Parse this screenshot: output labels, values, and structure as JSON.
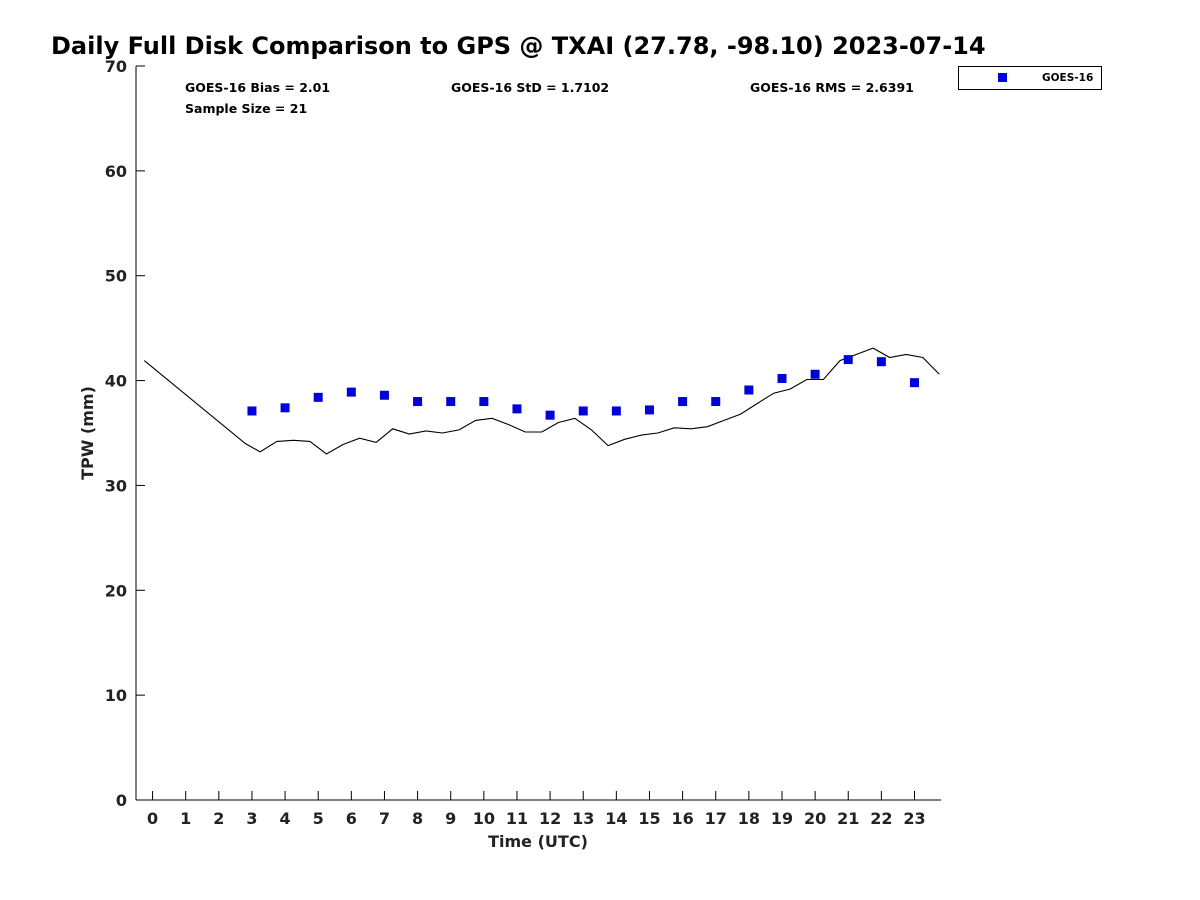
{
  "chart_data": {
    "type": "scatter",
    "title": "Daily Full Disk Comparison to GPS @ TXAI (27.78, -98.10) 2023-07-14",
    "xlabel": "Time (UTC)",
    "ylabel": "TPW (mm)",
    "xlim": [
      -0.5,
      23.8
    ],
    "ylim": [
      0,
      70
    ],
    "xticks": [
      "0",
      "1",
      "2",
      "3",
      "4",
      "5",
      "6",
      "7",
      "8",
      "9",
      "10",
      "11",
      "12",
      "13",
      "14",
      "15",
      "16",
      "17",
      "18",
      "19",
      "20",
      "21",
      "22",
      "23"
    ],
    "yticks": [
      "0",
      "10",
      "20",
      "30",
      "40",
      "50",
      "60",
      "70"
    ],
    "grid": false,
    "legend_position": "top-right, outside plot",
    "stats": {
      "bias": "GOES-16 Bias = 2.01",
      "std": "GOES-16 StD = 1.7102",
      "rms": "GOES-16 RMS = 2.6391",
      "sample": "Sample Size = 21"
    },
    "series": [
      {
        "name": "GOES-16",
        "kind": "markers",
        "color": "#0000dd",
        "x": [
          3,
          4,
          5,
          6,
          7,
          8,
          9,
          10,
          11,
          12,
          13,
          14,
          15,
          16,
          17,
          18,
          19,
          20,
          21,
          22,
          23
        ],
        "y": [
          37.1,
          37.4,
          38.4,
          38.9,
          38.6,
          38.0,
          38.0,
          38.0,
          37.3,
          36.7,
          37.1,
          37.1,
          37.2,
          38.0,
          38.0,
          39.1,
          40.2,
          40.6,
          42.0,
          41.8,
          39.8
        ]
      },
      {
        "kind": "line",
        "color": "#000000",
        "x": [
          -0.25,
          2.8,
          3.25,
          3.75,
          4.25,
          4.75,
          5.25,
          5.75,
          6.25,
          6.75,
          7.25,
          7.75,
          8.25,
          8.75,
          9.25,
          9.75,
          10.25,
          10.75,
          11.25,
          11.75,
          12.25,
          12.75,
          13.25,
          13.75,
          14.25,
          14.75,
          15.25,
          15.75,
          16.25,
          16.75,
          17.25,
          17.75,
          18.25,
          18.75,
          19.25,
          19.75,
          20.25,
          20.75,
          21.25,
          21.75,
          22.25,
          22.75,
          23.25,
          23.75
        ],
        "y": [
          41.9,
          34.0,
          33.2,
          34.2,
          34.3,
          34.2,
          33.0,
          33.9,
          34.5,
          34.1,
          35.4,
          34.9,
          35.2,
          35.0,
          35.3,
          36.2,
          36.4,
          35.8,
          35.1,
          35.1,
          36.0,
          36.4,
          35.3,
          33.8,
          34.4,
          34.8,
          35.0,
          35.5,
          35.4,
          35.6,
          36.2,
          36.8,
          37.8,
          38.8,
          39.2,
          40.1,
          40.1,
          41.9,
          42.5,
          43.1,
          42.2,
          42.5,
          42.2,
          40.6
        ]
      }
    ]
  }
}
